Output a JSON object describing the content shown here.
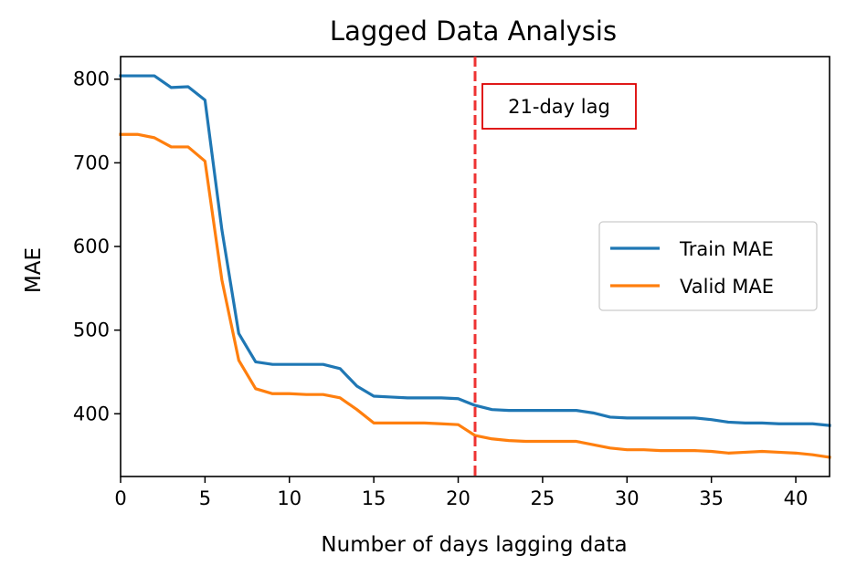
{
  "chart_data": {
    "type": "line",
    "title": "Lagged Data Analysis",
    "xlabel": "Number of days lagging data",
    "ylabel": "MAE",
    "xlim": [
      0,
      42
    ],
    "ylim": [
      325,
      827
    ],
    "xticks": [
      0,
      5,
      10,
      15,
      20,
      25,
      30,
      35,
      40
    ],
    "yticks": [
      400,
      500,
      600,
      700,
      800
    ],
    "grid": false,
    "legend_position": "center-right",
    "x": [
      0,
      1,
      2,
      3,
      4,
      5,
      6,
      7,
      8,
      9,
      10,
      11,
      12,
      13,
      14,
      15,
      16,
      17,
      18,
      19,
      20,
      21,
      22,
      23,
      24,
      25,
      26,
      27,
      28,
      29,
      30,
      31,
      32,
      33,
      34,
      35,
      36,
      37,
      38,
      39,
      40,
      41,
      42
    ],
    "series": [
      {
        "name": "Train MAE",
        "color": "#1f77b4",
        "values": [
          804,
          804,
          804,
          790,
          791,
          775,
          620,
          496,
          462,
          459,
          459,
          459,
          459,
          454,
          433,
          421,
          420,
          419,
          419,
          419,
          418,
          410,
          405,
          404,
          404,
          404,
          404,
          404,
          401,
          396,
          395,
          395,
          395,
          395,
          395,
          393,
          390,
          389,
          389,
          388,
          388,
          388,
          386
        ]
      },
      {
        "name": "Valid MAE",
        "color": "#ff7f0e",
        "values": [
          734,
          734,
          730,
          719,
          719,
          702,
          560,
          464,
          430,
          424,
          424,
          423,
          423,
          419,
          405,
          389,
          389,
          389,
          389,
          388,
          387,
          374,
          370,
          368,
          367,
          367,
          367,
          367,
          363,
          359,
          357,
          357,
          356,
          356,
          356,
          355,
          353,
          354,
          355,
          354,
          353,
          351,
          348
        ]
      }
    ],
    "annotations": {
      "vline": {
        "x": 21,
        "color": "#ee3333",
        "style": "dashed"
      },
      "label": {
        "text": "21-day lag",
        "x": 26.3,
        "y": 766,
        "border_color": "#dd0000"
      }
    }
  }
}
